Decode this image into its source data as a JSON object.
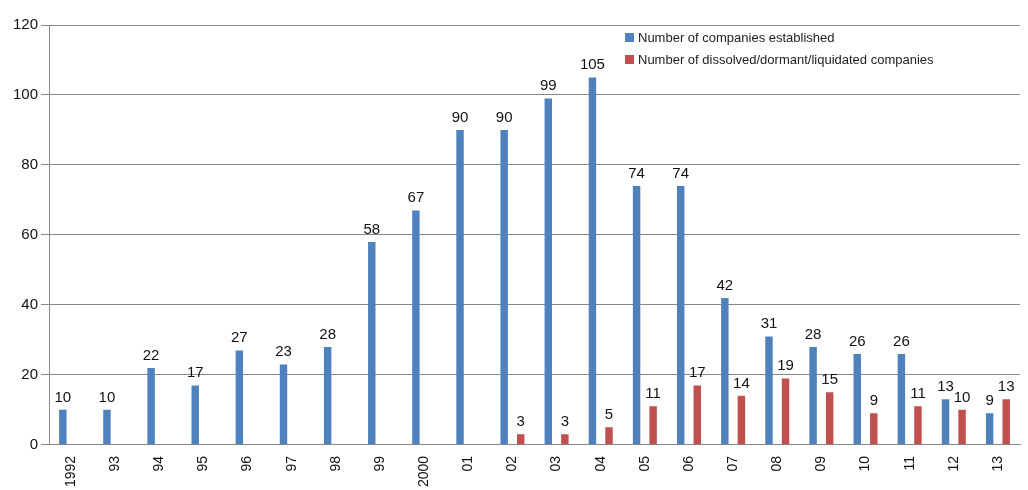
{
  "chart_data": {
    "type": "bar",
    "categories": [
      "1992",
      "93",
      "94",
      "95",
      "96",
      "97",
      "98",
      "99",
      "2000",
      "01",
      "02",
      "03",
      "04",
      "05",
      "06",
      "07",
      "08",
      "09",
      "10",
      "11",
      "12",
      "13"
    ],
    "series": [
      {
        "name": "Number of companies established",
        "color": "#4f81bd",
        "values": [
          10,
          10,
          22,
          17,
          27,
          23,
          28,
          58,
          67,
          90,
          90,
          99,
          105,
          74,
          74,
          42,
          31,
          28,
          26,
          26,
          13,
          9
        ]
      },
      {
        "name": "Number of dissolved/dormant/liquidated companies",
        "color": "#c0504d",
        "values": [
          null,
          null,
          null,
          null,
          null,
          null,
          null,
          null,
          null,
          null,
          3,
          3,
          5,
          11,
          17,
          14,
          19,
          15,
          9,
          11,
          10,
          13
        ]
      }
    ],
    "ylim": [
      0,
      120
    ],
    "yticks": [
      0,
      20,
      40,
      60,
      80,
      100,
      120
    ],
    "grid": "y",
    "legend": "top right",
    "data_labels": true
  }
}
